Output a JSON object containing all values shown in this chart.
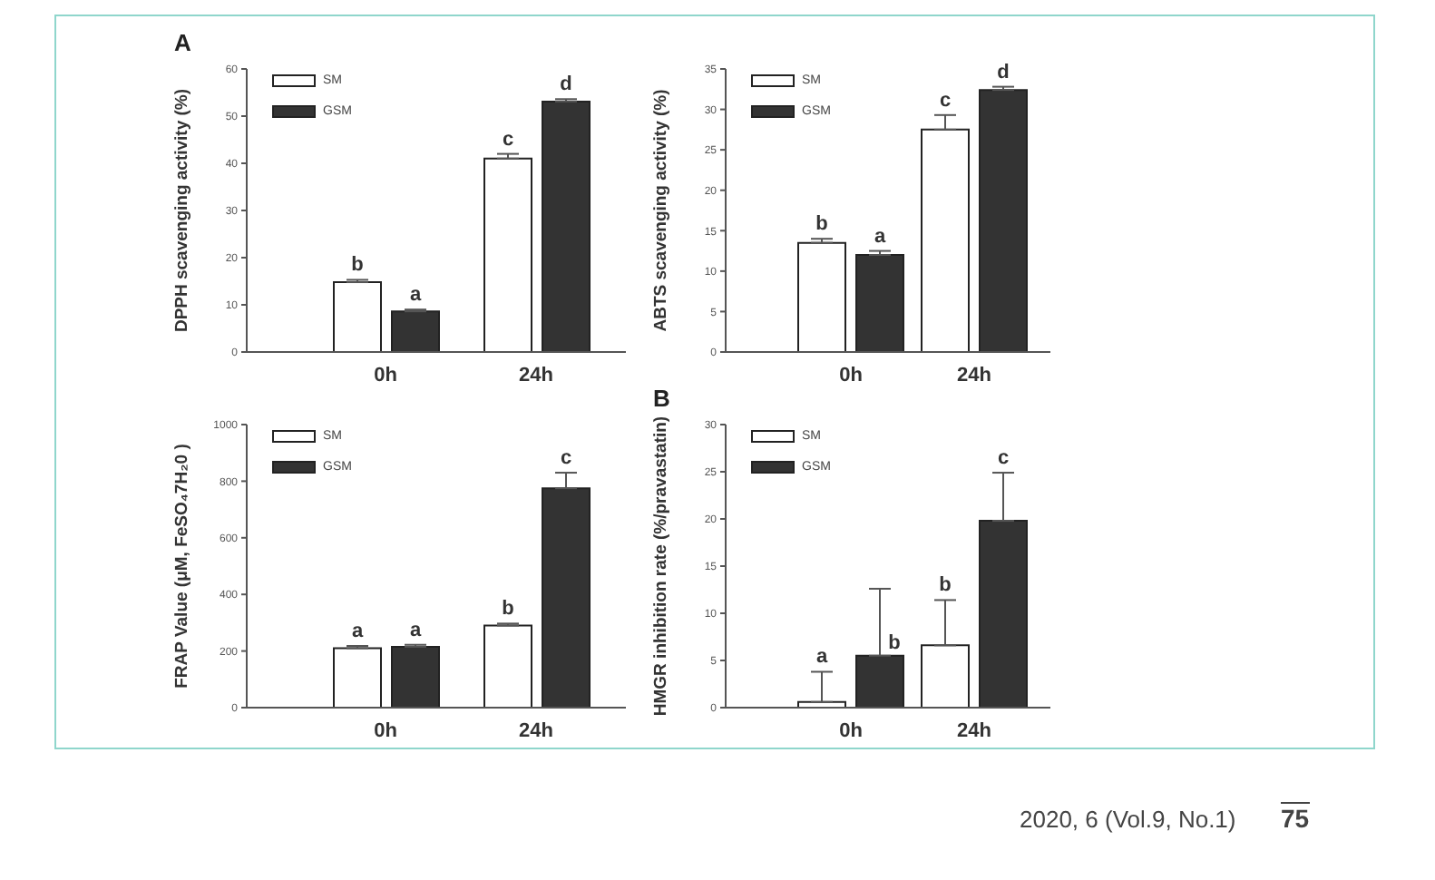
{
  "chart_data": [
    {
      "type": "bar",
      "annotations": [
        "A"
      ],
      "ylabel": "DPPH scavenging activity (%)",
      "categories": [
        "0h",
        "24h"
      ],
      "ylim": [
        0,
        60
      ],
      "yticks": [
        0,
        10,
        20,
        30,
        40,
        50,
        60
      ],
      "legend": "top left",
      "grid": false,
      "series": [
        {
          "name": "SM",
          "color": "#ffffff",
          "values": [
            14.8,
            41
          ],
          "errors": [
            [
              14.8,
              15.3
            ],
            [
              41,
              42
            ]
          ],
          "value_labels": [
            "b",
            "c"
          ]
        },
        {
          "name": "GSM",
          "color": "#333333",
          "values": [
            8.6,
            53.1
          ],
          "errors": [
            [
              8.6,
              9
            ],
            [
              53.1,
              53.6
            ]
          ],
          "value_labels": [
            "a",
            "d"
          ]
        }
      ]
    },
    {
      "type": "bar",
      "ylabel": "ABTS scavenging activity (%)",
      "categories": [
        "0h",
        "24h"
      ],
      "ylim": [
        0,
        35
      ],
      "yticks": [
        0,
        5,
        10,
        15,
        20,
        25,
        30,
        35
      ],
      "legend": "top left",
      "grid": false,
      "series": [
        {
          "name": "SM",
          "color": "#ffffff",
          "values": [
            13.5,
            27.5
          ],
          "errors": [
            [
              13.5,
              14
            ],
            [
              27.5,
              29.3
            ]
          ],
          "value_labels": [
            "b",
            "c"
          ]
        },
        {
          "name": "GSM",
          "color": "#333333",
          "values": [
            12,
            32.4
          ],
          "errors": [
            [
              12,
              12.5
            ],
            [
              32.4,
              32.8
            ]
          ],
          "value_labels": [
            "a",
            "d"
          ]
        }
      ]
    },
    {
      "type": "bar",
      "ylabel": "FRAP Value (μM, FeSO₄7H₂0 )",
      "categories": [
        "0h",
        "24h"
      ],
      "ylim": [
        0,
        1000
      ],
      "yticks": [
        0,
        200,
        400,
        600,
        800,
        1000
      ],
      "legend": "top left",
      "grid": false,
      "series": [
        {
          "name": "SM",
          "color": "#ffffff",
          "values": [
            210,
            290
          ],
          "errors": [
            [
              210,
              218
            ],
            [
              290,
              297
            ]
          ],
          "value_labels": [
            "a",
            "b"
          ]
        },
        {
          "name": "GSM",
          "color": "#333333",
          "values": [
            215,
            775
          ],
          "errors": [
            [
              215,
              222
            ],
            [
              775,
              830
            ]
          ],
          "value_labels": [
            "a",
            "c"
          ]
        }
      ]
    },
    {
      "type": "bar",
      "annotations": [
        "B",
        "2020, 6 (Vol.9, No.1)",
        "75"
      ],
      "ylabel": "HMGR inhibition rate (%/pravastatin)",
      "categories": [
        "0h",
        "24h"
      ],
      "ylim": [
        0,
        30
      ],
      "yticks": [
        0,
        5,
        10,
        15,
        20,
        25,
        30
      ],
      "legend": "top left",
      "grid": false,
      "series": [
        {
          "name": "SM",
          "color": "#ffffff",
          "values": [
            0.6,
            6.6
          ],
          "errors": [
            [
              0.6,
              3.8
            ],
            [
              6.6,
              11.4
            ]
          ],
          "value_labels": [
            "a",
            "b"
          ]
        },
        {
          "name": "GSM",
          "color": "#333333",
          "values": [
            5.5,
            19.8
          ],
          "errors": [
            [
              5.5,
              12.6
            ],
            [
              19.8,
              24.9
            ]
          ],
          "value_labels": [
            "b",
            "c"
          ]
        }
      ]
    }
  ]
}
